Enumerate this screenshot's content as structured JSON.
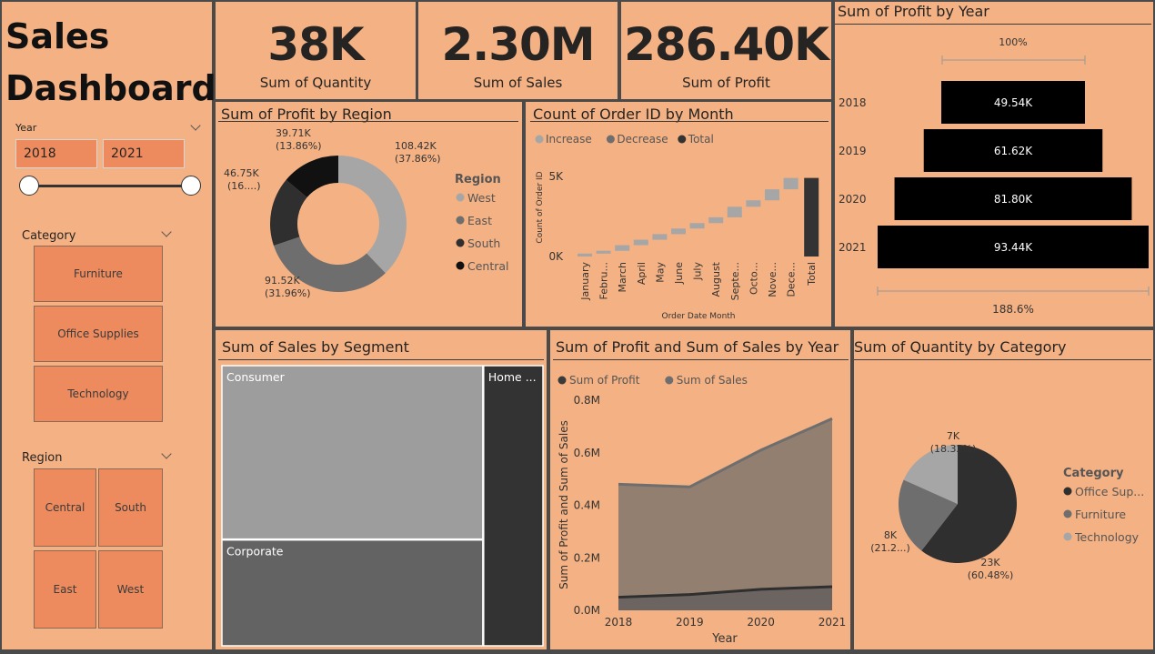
{
  "header": {
    "line1": "Sales",
    "line2": "Dashboard"
  },
  "slicers": {
    "year": {
      "label": "Year",
      "from": "2018",
      "to": "2021"
    },
    "category": {
      "label": "Category",
      "items": [
        "Furniture",
        "Office Supplies",
        "Technology"
      ]
    },
    "region": {
      "label": "Region",
      "items": [
        "Central",
        "South",
        "East",
        "West"
      ]
    }
  },
  "kpis": [
    {
      "value": "38K",
      "label": "Sum of Quantity"
    },
    {
      "value": "2.30M",
      "label": "Sum of Sales"
    },
    {
      "value": "286.40K",
      "label": "Sum of Profit"
    }
  ],
  "titles": {
    "profit_region": "Sum of Profit by Region",
    "order_month": "Count of Order ID by Month",
    "profit_year": "Sum of Profit by Year",
    "sales_segment": "Sum of Sales by Segment",
    "profit_sales_year": "Sum of Profit and Sum of Sales by Year",
    "qty_category": "Sum of Quantity by Category"
  },
  "chart_data": [
    {
      "type": "pie",
      "variant": "donut",
      "title": "Sum of Profit by Region",
      "legend_title": "Region",
      "legend": [
        "West",
        "East",
        "South",
        "Central"
      ],
      "colors": [
        "#a6a6a6",
        "#6e6e6e",
        "#2f2f2f",
        "#111111"
      ],
      "slices": [
        {
          "name": "West",
          "value": 108.42,
          "label": "108.42K",
          "pct_label": "(37.86%)"
        },
        {
          "name": "East",
          "value": 91.52,
          "label": "91.52K",
          "pct_label": "(31.96%)"
        },
        {
          "name": "South",
          "value": 46.75,
          "label": "46.75K",
          "pct_label": "(16....)"
        },
        {
          "name": "Central",
          "value": 39.71,
          "label": "39.71K",
          "pct_label": "(13.86%)"
        }
      ]
    },
    {
      "type": "bar",
      "variant": "waterfall",
      "title": "Count of Order ID by Month",
      "legend": [
        "Increase",
        "Decrease",
        "Total"
      ],
      "colors": {
        "increase": "#a6a6a6",
        "decrease": "#6e6e6e",
        "total": "#333333"
      },
      "xlabel": "Order Date Month",
      "ylabel": "Count of Order ID",
      "yticks": [
        "0K",
        "5K"
      ],
      "ylim": [
        0,
        5000
      ],
      "categories": [
        "January",
        "Febru...",
        "March",
        "April",
        "May",
        "June",
        "July",
        "August",
        "Septe...",
        "Octo...",
        "Nove...",
        "Dece...",
        "Total"
      ],
      "increments": [
        180,
        178,
        350,
        340,
        350,
        350,
        340,
        360,
        660,
        400,
        690,
        710
      ],
      "total": 4908
    },
    {
      "type": "bar",
      "variant": "funnel",
      "title": "Sum of Profit by Year",
      "categories": [
        "2018",
        "2019",
        "2020",
        "2021"
      ],
      "values": [
        49.54,
        61.62,
        81.8,
        93.44
      ],
      "labels": [
        "49.54K",
        "61.62K",
        "81.80K",
        "93.44K"
      ],
      "top_pct": "100%",
      "bottom_pct": "188.6%"
    },
    {
      "type": "heatmap",
      "variant": "treemap",
      "title": "Sum of Sales by Segment",
      "segments": [
        {
          "name": "Consumer",
          "value": 1.16
        },
        {
          "name": "Corporate",
          "value": 0.71
        },
        {
          "name": "Home ...",
          "value": 0.43
        }
      ],
      "colors": [
        "#9d9d9d",
        "#636363",
        "#333333"
      ]
    },
    {
      "type": "area",
      "title": "Sum of Profit and Sum of Sales by Year",
      "legend": [
        "Sum of Profit",
        "Sum of Sales"
      ],
      "xlabel": "Year",
      "ylabel": "Sum of Profit and Sum of Sales",
      "x": [
        "2018",
        "2019",
        "2020",
        "2021"
      ],
      "yticks": [
        "0.0M",
        "0.2M",
        "0.4M",
        "0.6M",
        "0.8M"
      ],
      "ylim": [
        0,
        0.8
      ],
      "series": [
        {
          "name": "Sum of Profit",
          "values": [
            0.05,
            0.06,
            0.08,
            0.09
          ]
        },
        {
          "name": "Sum of Sales",
          "values": [
            0.48,
            0.47,
            0.61,
            0.73
          ]
        }
      ]
    },
    {
      "type": "pie",
      "title": "Sum of Quantity by Category",
      "legend_title": "Category",
      "legend": [
        "Office Sup...",
        "Furniture",
        "Technology"
      ],
      "colors": [
        "#2f2f2f",
        "#6e6e6e",
        "#a6a6a6"
      ],
      "slices": [
        {
          "name": "Office Supplies",
          "value": 60.48,
          "label": "23K",
          "pct_label": "(60.48%)"
        },
        {
          "name": "Furniture",
          "value": 21.2,
          "label": "8K",
          "pct_label": "(21.2...)"
        },
        {
          "name": "Technology",
          "value": 18.32,
          "label": "7K",
          "pct_label": "(18.32%)"
        }
      ]
    }
  ]
}
